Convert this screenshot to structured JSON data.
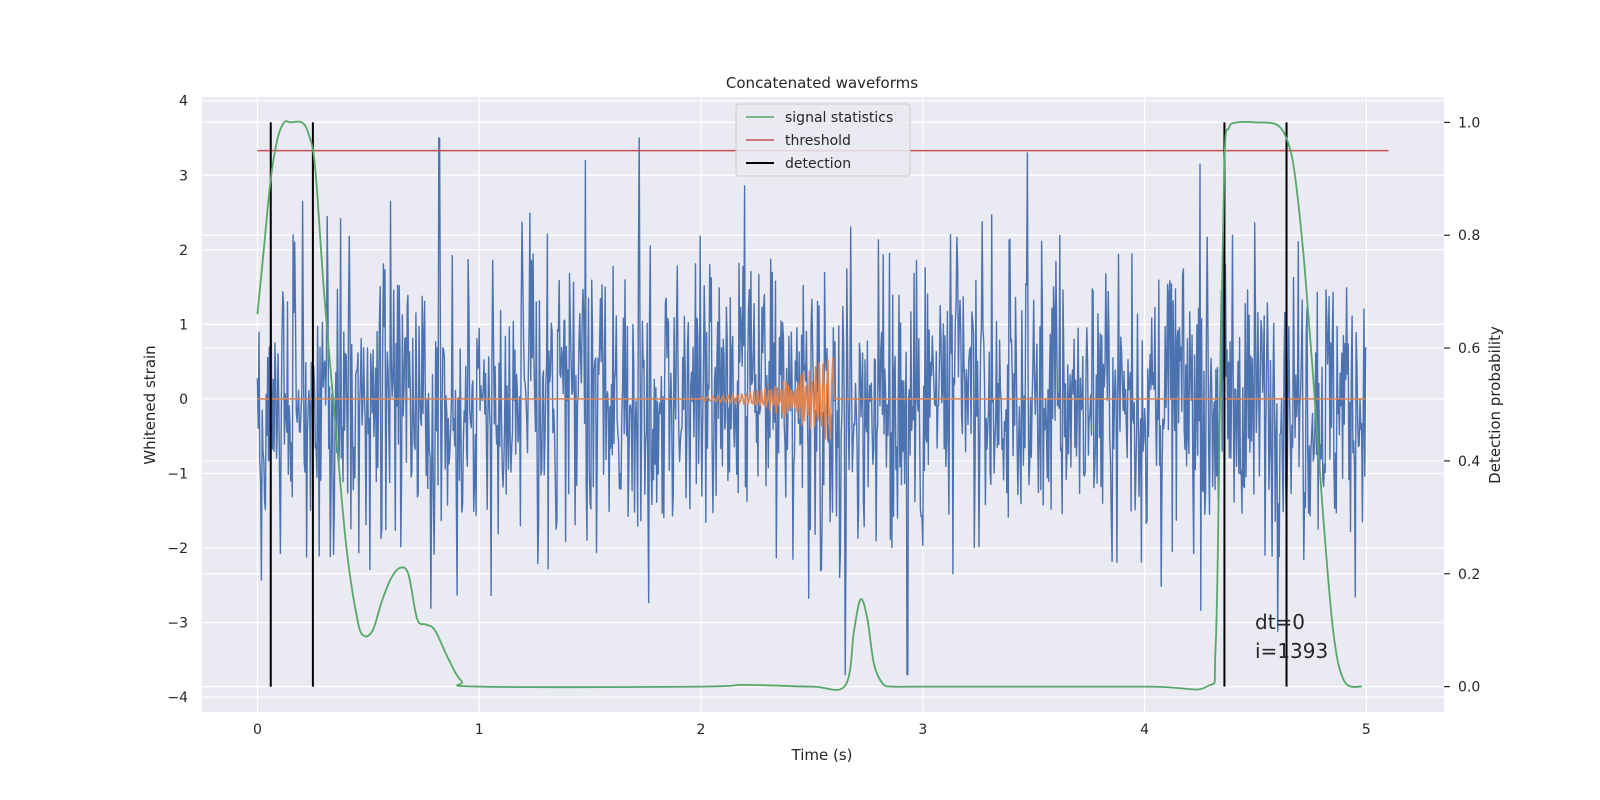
{
  "chart_data": {
    "type": "line",
    "title": "Concatenated waveforms",
    "xlabel": "Time (s)",
    "ylabel_left": "Whitened strain",
    "ylabel_right": "Detection probability",
    "xlim": [
      -0.25,
      5.35
    ],
    "ylim_left": [
      -4.2,
      4.05
    ],
    "ylim_right": [
      -0.045,
      1.045
    ],
    "x_ticks": [
      "0",
      "1",
      "2",
      "3",
      "4",
      "5"
    ],
    "x_tick_values": [
      0,
      1,
      2,
      3,
      4,
      5
    ],
    "y_ticks_left": [
      "4",
      "3",
      "2",
      "1",
      "0",
      "−1",
      "−2",
      "−3",
      "−4"
    ],
    "y_tick_values_left": [
      4,
      3,
      2,
      1,
      0,
      -1,
      -2,
      -3,
      -4
    ],
    "y_ticks_right": [
      "1.0",
      "0.8",
      "0.6",
      "0.4",
      "0.2",
      "0.0"
    ],
    "y_tick_values_right": [
      1.0,
      0.8,
      0.6,
      0.4,
      0.2,
      0.0
    ],
    "grid": true,
    "legend_position": "top-center",
    "legend": [
      "signal statistics",
      "threshold",
      "detection"
    ],
    "colors": {
      "strain": "#4c72b0",
      "injected": "#dd8452",
      "signal": "#55a868",
      "threshold": "#c44e52",
      "detection": "#000000",
      "background": "#eaeaf2",
      "grid": "#ffffff"
    },
    "strain": {
      "x_range": [
        0,
        5
      ],
      "typical_amplitude": 1.3,
      "peak_spikes": [
        {
          "x": 0.82,
          "y": 3.65
        },
        {
          "x": 1.72,
          "y": 3.6
        },
        {
          "x": 2.65,
          "y": -3.82
        },
        {
          "x": 2.93,
          "y": -3.8
        },
        {
          "x": 3.47,
          "y": 3.3
        },
        {
          "x": 0.6,
          "y": 2.65
        },
        {
          "x": 1.48,
          "y": 3.2
        },
        {
          "x": 4.25,
          "y": 3.15
        }
      ]
    },
    "injected_chirp": {
      "x_start": 2.0,
      "x_end": 2.6,
      "peak_amplitude": 0.6
    },
    "signal_statistics": {
      "x": [
        0.0,
        0.03,
        0.06,
        0.09,
        0.12,
        0.15,
        0.2,
        0.23,
        0.26,
        0.3,
        0.35,
        0.4,
        0.45,
        0.48,
        0.52,
        0.56,
        0.6,
        0.64,
        0.68,
        0.72,
        0.76,
        0.8,
        0.86,
        0.92,
        1.0,
        2.0,
        2.2,
        2.5,
        2.65,
        2.69,
        2.72,
        2.75,
        2.78,
        2.82,
        2.87,
        3.0,
        4.0,
        4.28,
        4.32,
        4.34,
        4.36,
        4.38,
        4.42,
        4.5,
        4.6,
        4.65,
        4.68,
        4.72,
        4.76,
        4.8,
        4.85,
        4.9,
        4.98
      ],
      "y": [
        0.66,
        0.78,
        0.9,
        0.97,
        1.0,
        1.0,
        1.0,
        0.98,
        0.92,
        0.7,
        0.47,
        0.25,
        0.12,
        0.09,
        0.1,
        0.15,
        0.19,
        0.21,
        0.2,
        0.12,
        0.11,
        0.1,
        0.05,
        0.01,
        0.0,
        0.0,
        0.003,
        0.0,
        0.002,
        0.1,
        0.155,
        0.12,
        0.04,
        0.005,
        0.0,
        0.0,
        0.0,
        0.0,
        0.07,
        0.5,
        0.93,
        0.99,
        1.0,
        1.0,
        0.995,
        0.96,
        0.9,
        0.75,
        0.55,
        0.33,
        0.1,
        0.01,
        0.0
      ]
    },
    "threshold": {
      "value": 0.95,
      "x_range": [
        0,
        5.1
      ]
    },
    "detections": [
      0.06,
      0.25,
      4.36,
      4.64
    ],
    "detection_range": [
      0.0,
      1.0
    ],
    "annotations": [
      "dt=0",
      "i=1393"
    ]
  }
}
